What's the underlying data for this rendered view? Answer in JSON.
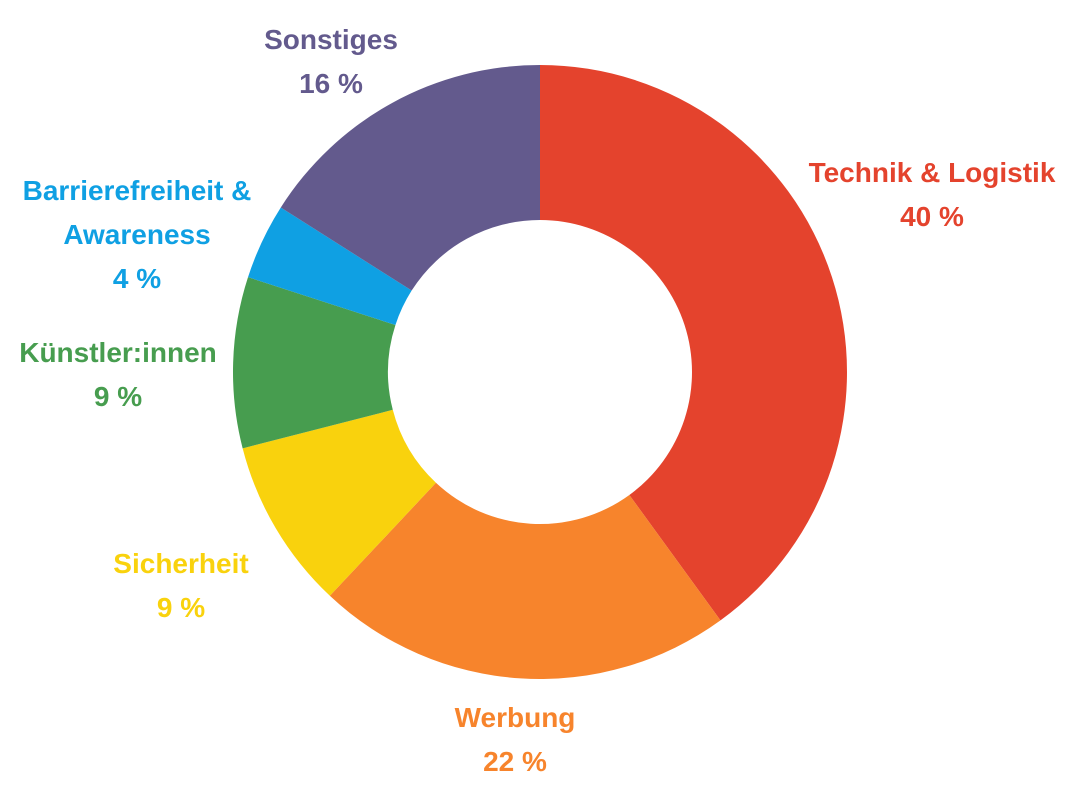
{
  "chart_data": {
    "type": "pie",
    "variant": "donut",
    "title": "",
    "unit": "%",
    "slices": [
      {
        "label": "Technik & Logistik",
        "value": 40,
        "value_label": "40 %",
        "color": "#E4432D"
      },
      {
        "label": "Werbung",
        "value": 22,
        "value_label": "22 %",
        "color": "#F7842C"
      },
      {
        "label": "Sicherheit",
        "value": 9,
        "value_label": "9 %",
        "color": "#F9D20D"
      },
      {
        "label": "Künstler:innen",
        "value": 9,
        "value_label": "9 %",
        "color": "#479D4F"
      },
      {
        "label": "Barrierefreiheit & Awareness",
        "value": 4,
        "value_label": "4 %",
        "color": "#0FA0E3"
      },
      {
        "label": "Sonstiges",
        "value": 16,
        "value_label": "16 %",
        "color": "#635A8D"
      }
    ],
    "start_angle": "12 o'clock",
    "direction": "clockwise",
    "legend": "none (labels placed next to slices)"
  }
}
